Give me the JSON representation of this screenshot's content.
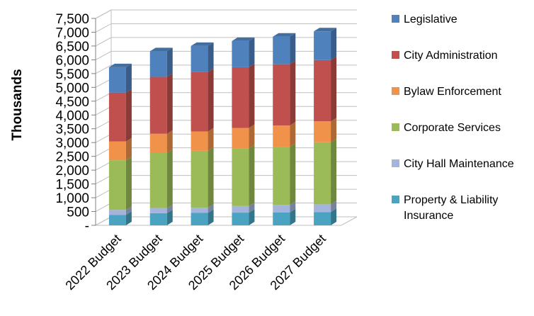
{
  "chart_data": {
    "type": "bar",
    "stacked": true,
    "three_d": true,
    "title": "",
    "xlabel": "",
    "ylabel": "Thousands",
    "ylim": [
      0,
      7500
    ],
    "yticks": [
      "-",
      "500",
      "1,000",
      "1,500",
      "2,000",
      "2,500",
      "3,000",
      "3,500",
      "4,000",
      "4,500",
      "5,000",
      "5,500",
      "6,000",
      "6,500",
      "7,000",
      "7,500"
    ],
    "ytick_values": [
      0,
      500,
      1000,
      1500,
      2000,
      2500,
      3000,
      3500,
      4000,
      4500,
      5000,
      5500,
      6000,
      6500,
      7000,
      7500
    ],
    "grid": "major-y",
    "legend_position": "right",
    "categories": [
      "2022 Budget",
      "2023 Budget",
      "2024 Budget",
      "2025 Budget",
      "2026 Budget",
      "2027 Budget"
    ],
    "series": [
      {
        "name": "Property & Liability Insurance",
        "color": "#4aa3c0",
        "values": [
          380,
          440,
          450,
          460,
          470,
          480
        ]
      },
      {
        "name": "City Hall Maintenance",
        "color": "#a5b4dd",
        "values": [
          180,
          180,
          190,
          240,
          270,
          280
        ]
      },
      {
        "name": "Corporate Services",
        "color": "#9bbb59",
        "values": [
          1800,
          2000,
          2060,
          2090,
          2110,
          2250
        ]
      },
      {
        "name": "Bylaw Enforcement",
        "color": "#f0924a",
        "values": [
          680,
          700,
          700,
          740,
          770,
          760
        ]
      },
      {
        "name": "City Administration",
        "color": "#c0504d",
        "values": [
          1770,
          2060,
          2150,
          2200,
          2220,
          2220
        ]
      },
      {
        "name": "Legislative",
        "color": "#4f81bd",
        "values": [
          920,
          930,
          950,
          950,
          1000,
          1040
        ]
      }
    ]
  }
}
